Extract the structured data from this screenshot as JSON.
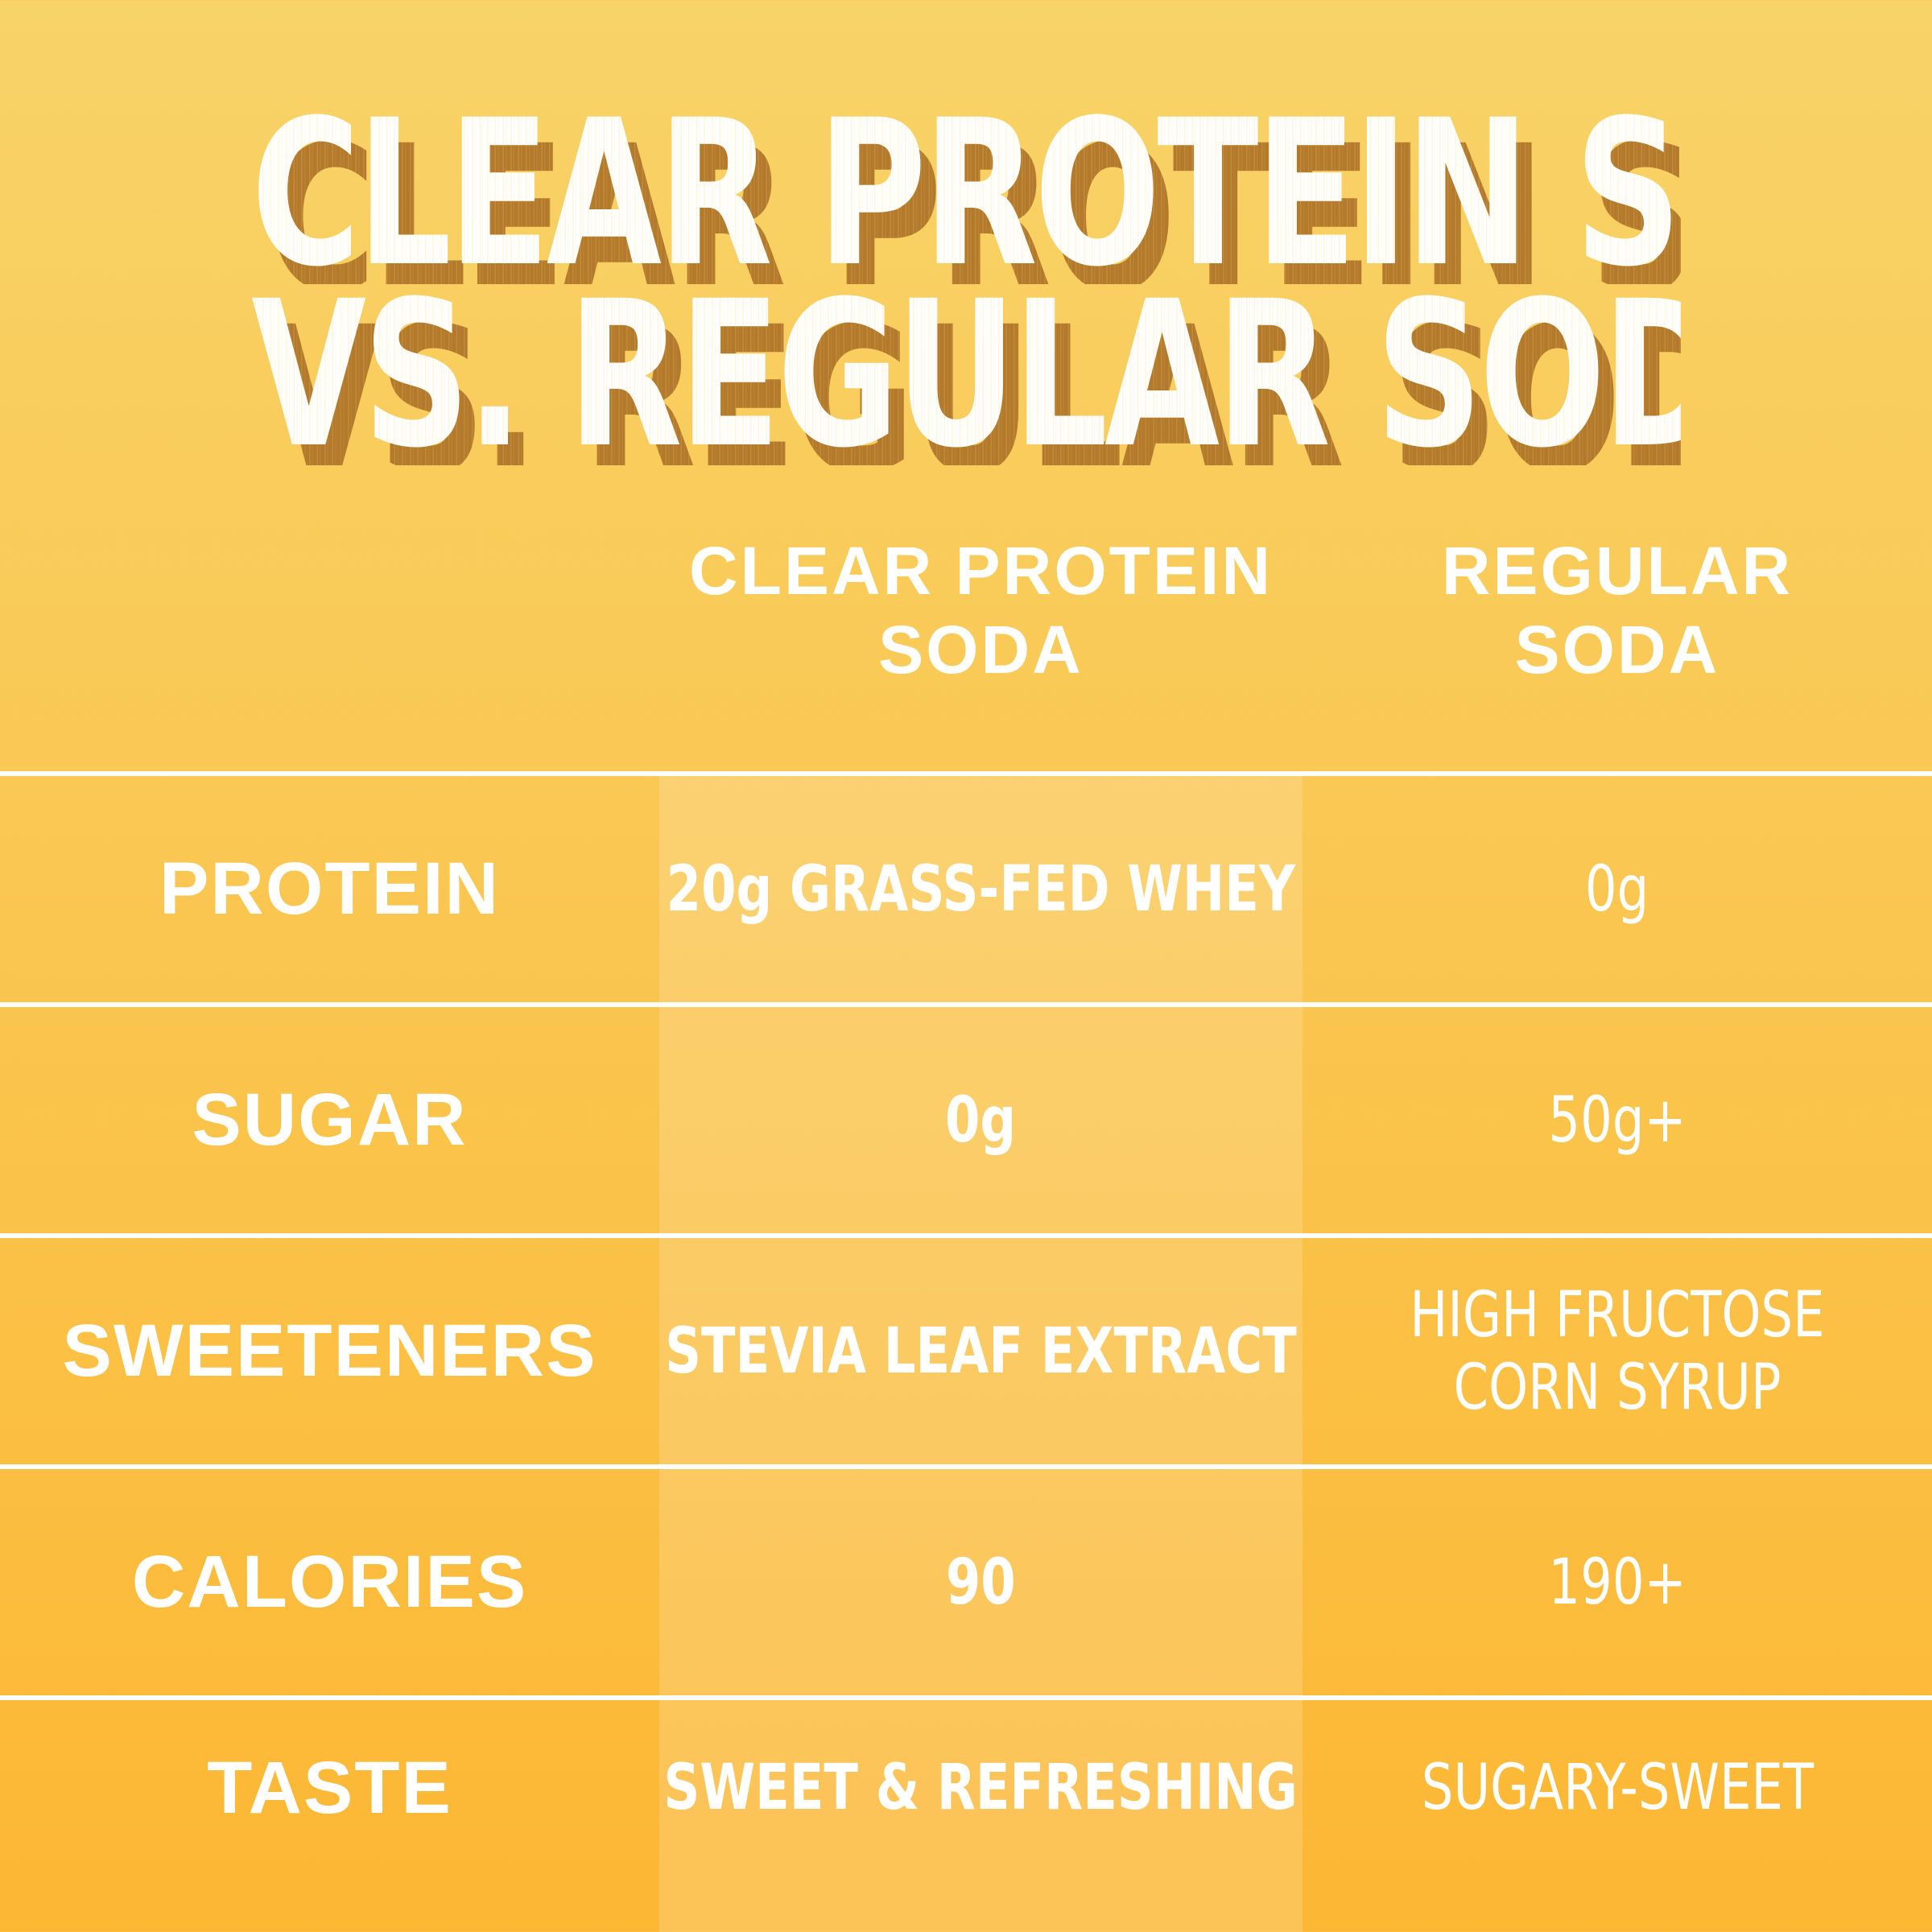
{
  "title": {
    "line1": "CLEAR PROTEIN SODA",
    "line2": "VS. REGULAR SODA"
  },
  "table": {
    "header": {
      "col1": {
        "line1": "CLEAR PROTEIN",
        "line2": "SODA"
      },
      "col2": {
        "line1": "REGULAR",
        "line2": "SODA"
      }
    },
    "rows": [
      {
        "label": "PROTEIN",
        "clear": "20g GRASS-FED WHEY",
        "regular": "0g"
      },
      {
        "label": "SUGAR",
        "clear": "0g",
        "regular": "50g+"
      },
      {
        "label": "SWEETENERS",
        "clear": "STEVIA LEAF EXTRACT",
        "regular": "HIGH FRUCTOSE CORN SYRUP"
      },
      {
        "label": "CALORIES",
        "clear": "90",
        "regular": "190+"
      },
      {
        "label": "TASTE",
        "clear": "SWEET & REFRESHING",
        "regular": "SUGARY-SWEET"
      }
    ]
  },
  "colors": {
    "background_top": "#F8D368",
    "background_bottom": "#FCB733",
    "title_text": "#FFFFFF",
    "title_shadow": "#B3792C",
    "table_text": "#FFFFFF",
    "divider": "#FFFFFF",
    "highlight_column_overlay": "rgba(255,255,255,0.17)"
  },
  "chart_data": {
    "type": "table",
    "title": "CLEAR PROTEIN SODA VS. REGULAR SODA",
    "column_headers": [
      "CLEAR PROTEIN SODA",
      "REGULAR SODA"
    ],
    "row_headers": [
      "PROTEIN",
      "SUGAR",
      "SWEETENERS",
      "CALORIES",
      "TASTE"
    ],
    "cells": [
      [
        "20g GRASS-FED WHEY",
        "0g"
      ],
      [
        "0g",
        "50g+"
      ],
      [
        "STEVIA LEAF EXTRACT",
        "HIGH FRUCTOSE CORN SYRUP"
      ],
      [
        "90",
        "190+"
      ],
      [
        "SWEET & REFRESHING",
        "SUGARY-SWEET"
      ]
    ]
  }
}
